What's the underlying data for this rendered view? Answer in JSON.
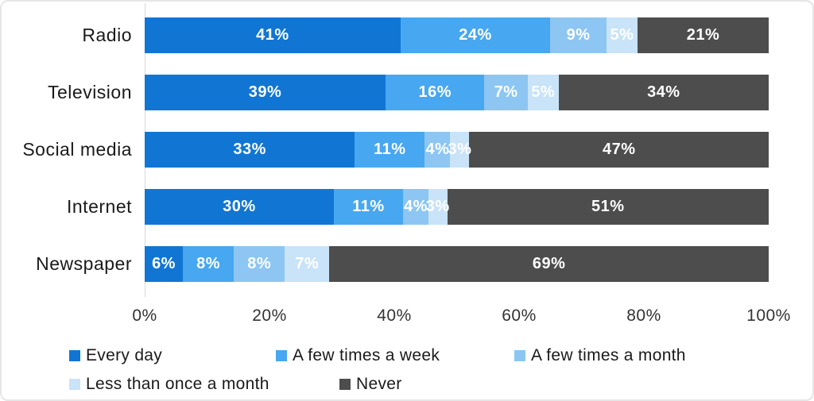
{
  "chart_data": {
    "type": "bar",
    "orientation": "horizontal-stacked",
    "categories": [
      "Radio",
      "Television",
      "Social media",
      "Internet",
      "Newspaper"
    ],
    "series": [
      {
        "name": "Every day",
        "color": "#1176D3",
        "values": [
          41,
          39,
          33,
          30,
          6
        ]
      },
      {
        "name": "A few times a week",
        "color": "#47A7F0",
        "values": [
          24,
          16,
          11,
          11,
          8
        ]
      },
      {
        "name": "A few times a month",
        "color": "#8DC6F2",
        "values": [
          9,
          7,
          4,
          4,
          8
        ]
      },
      {
        "name": "Less than once a month",
        "color": "#C9E3F8",
        "values": [
          5,
          5,
          3,
          3,
          7
        ]
      },
      {
        "name": "Never",
        "color": "#4D4D4D",
        "values": [
          21,
          34,
          47,
          51,
          69
        ]
      }
    ],
    "value_label_suffix": "%",
    "x_ticks": [
      "0%",
      "20%",
      "40%",
      "60%",
      "80%",
      "100%"
    ],
    "xlim": [
      0,
      100
    ],
    "grid": "axis-line-only",
    "legend_position": "bottom",
    "value_label_color": "#ffffff"
  }
}
